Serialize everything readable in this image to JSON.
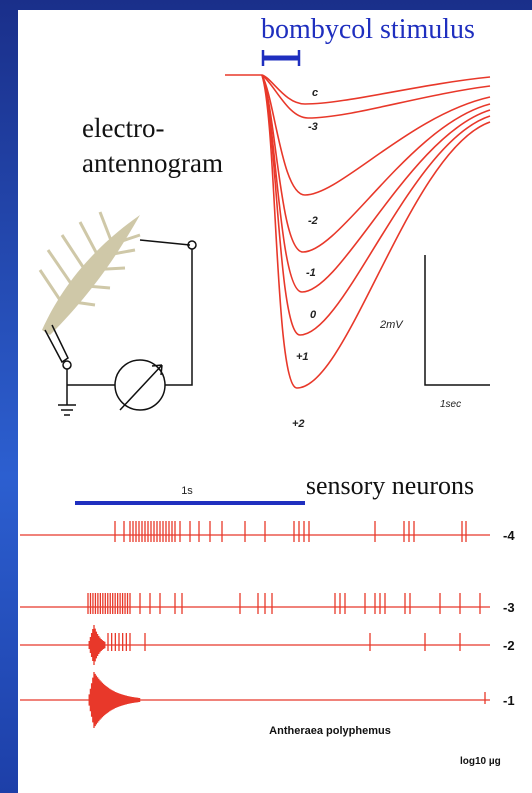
{
  "stimulus": "bombycol stimulus",
  "eag": {
    "label": [
      "electro-",
      "antennogram"
    ],
    "curve_labels": [
      "c",
      "-3",
      "-2",
      "-1",
      "0",
      "+1",
      "+2"
    ],
    "scale_y": "2mV",
    "scale_x": "1sec"
  },
  "neurons": {
    "title": "sensory neurons",
    "scale": "1s",
    "trace_labels": [
      "-4",
      "-3",
      "-2",
      "-1"
    ],
    "species": "Antheraea polyphemus",
    "unit": "log10 µg"
  }
}
